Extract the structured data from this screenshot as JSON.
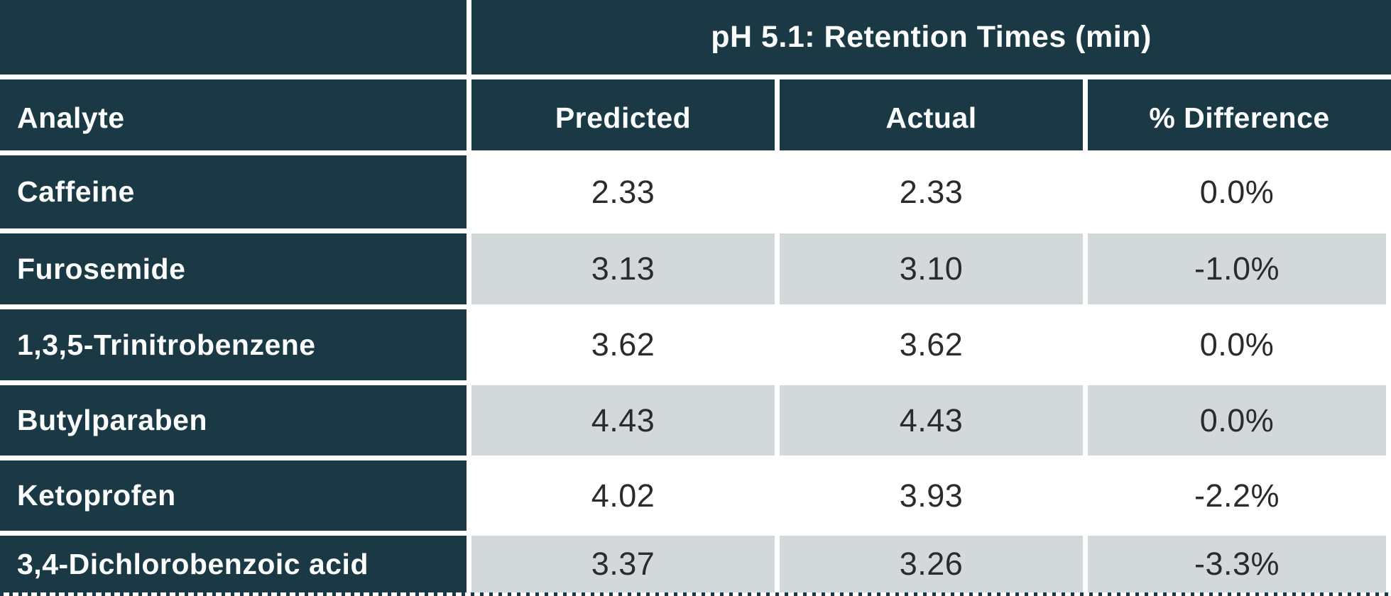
{
  "colors": {
    "header-bg": "#1a3945",
    "row-alt-bg": "#d3d9db",
    "row-bg": "#ffffff",
    "grid": "#ffffff",
    "header-text": "#fbfcfc",
    "number-text": "#2b2b2b"
  },
  "chart_data": {
    "type": "table",
    "title": "pH 5.1: Retention Times (min)",
    "columns": [
      "Analyte",
      "Predicted",
      "Actual",
      "% Difference"
    ],
    "rows": [
      [
        "Caffeine",
        "2.33",
        "2.33",
        "0.0%"
      ],
      [
        "Furosemide",
        "3.13",
        "3.10",
        "-1.0%"
      ],
      [
        "1,3,5-Trinitrobenzene",
        "3.62",
        "3.62",
        "0.0%"
      ],
      [
        "Butylparaben",
        "4.43",
        "4.43",
        "0.0%"
      ],
      [
        "Ketoprofen",
        "4.02",
        "3.93",
        "-2.2%"
      ],
      [
        "3,4-Dichlorobenzoic acid",
        "3.37",
        "3.26",
        "-3.3%"
      ]
    ],
    "layout": {
      "row_header_column": "Analyte",
      "zebra_striping": true,
      "gridlines": "white",
      "bottom_border": "dotted"
    }
  }
}
